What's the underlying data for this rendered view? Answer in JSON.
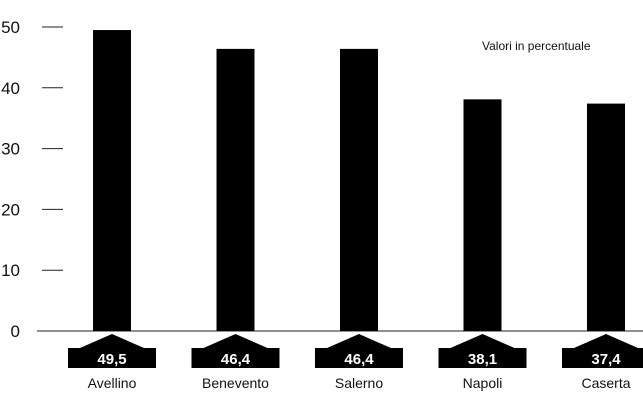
{
  "chart_data": {
    "type": "bar",
    "title": "",
    "note": "Valori in percentuale",
    "xlabel": "",
    "ylabel": "",
    "ylim": [
      0,
      50
    ],
    "yticks": [
      "0",
      "10",
      "20",
      "30",
      "40",
      "50"
    ],
    "grid": false,
    "categories": [
      "Avellino",
      "Benevento",
      "Salerno",
      "Napoli",
      "Caserta"
    ],
    "values": [
      49.5,
      46.4,
      46.4,
      38.1,
      37.4
    ],
    "value_labels": [
      "49,5",
      "46,4",
      "46,4",
      "38,1",
      "37,4"
    ],
    "bar_color": "#000000"
  }
}
